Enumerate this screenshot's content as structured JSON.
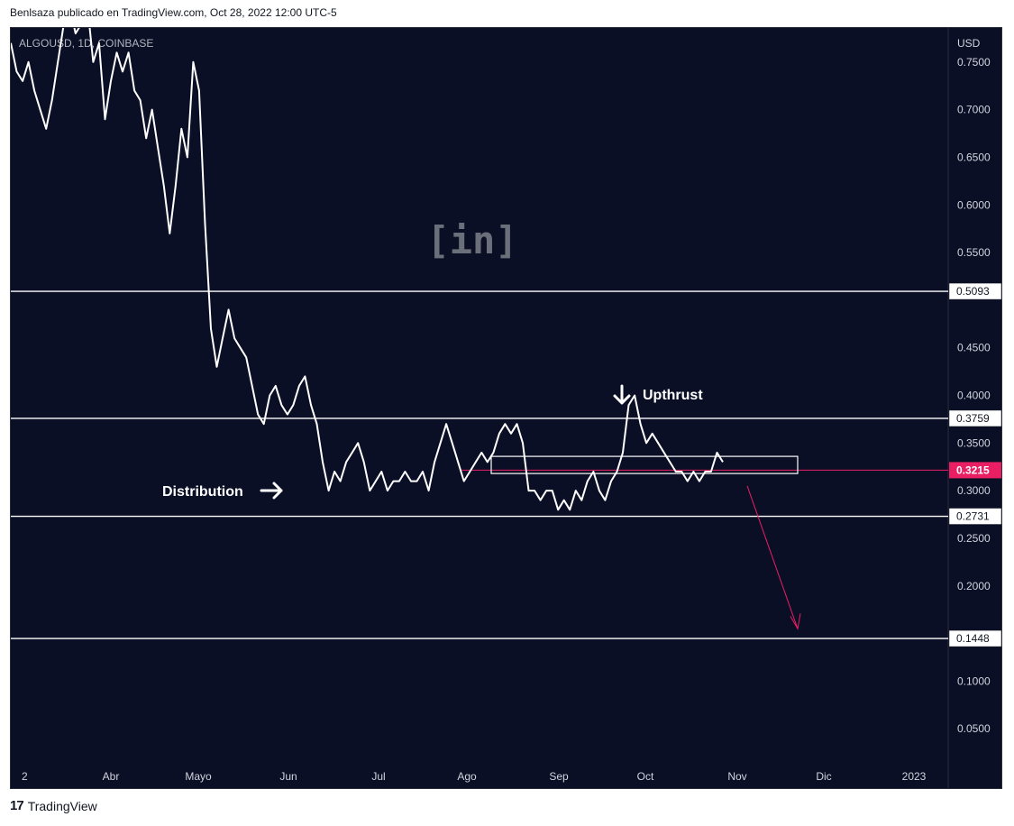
{
  "header": {
    "caption": "Benlsaza publicado en TradingView.com, Oct 28, 2022 12:00 UTC-5"
  },
  "footer": {
    "brand_logo": "17",
    "brand_text": "TradingView"
  },
  "watermark": {
    "text": "[in]"
  },
  "colors": {
    "background": "#0b0f26",
    "line": "#ffffff",
    "accent": "#e91e63",
    "axis_text": "#d1d4dc"
  },
  "chart_data": {
    "type": "line",
    "symbol": "ALGOUSD, 1D, COINBASE",
    "currency": "USD",
    "x_labels": [
      "2",
      "Abr",
      "Mayo",
      "Jun",
      "Jul",
      "Ago",
      "Sep",
      "Oct",
      "Nov",
      "Dic",
      "2023"
    ],
    "y_ticks": [
      "0.7500",
      "0.7000",
      "0.6500",
      "0.6000",
      "0.5500",
      "0.4500",
      "0.4000",
      "0.3500",
      "0.3000",
      "0.2500",
      "0.2000",
      "0.1000",
      "0.0500"
    ],
    "price_levels": [
      {
        "label": "0.5093",
        "value": 0.5093
      },
      {
        "label": "0.3759",
        "value": 0.3759
      },
      {
        "label": "0.2731",
        "value": 0.2731
      },
      {
        "label": "0.1448",
        "value": 0.1448
      }
    ],
    "current_price": {
      "label": "0.3215",
      "value": 0.3215
    },
    "annotations": {
      "distribution": "Distribution",
      "upthrust": "Upthrust"
    },
    "series": [
      {
        "values": [
          0.77,
          0.74,
          0.73,
          0.75,
          0.72,
          0.7,
          0.68,
          0.71,
          0.75,
          0.79,
          0.81,
          0.78,
          0.79,
          0.81,
          0.75,
          0.77,
          0.69,
          0.73,
          0.76,
          0.74,
          0.76,
          0.72,
          0.71,
          0.67,
          0.7,
          0.66,
          0.62,
          0.57,
          0.62,
          0.68,
          0.65,
          0.75,
          0.72,
          0.58,
          0.47,
          0.43,
          0.46,
          0.49,
          0.46,
          0.45,
          0.44,
          0.41,
          0.38,
          0.37,
          0.4,
          0.41,
          0.39,
          0.38,
          0.39,
          0.41,
          0.42,
          0.39,
          0.37,
          0.33,
          0.3,
          0.32,
          0.31,
          0.33,
          0.34,
          0.35,
          0.33,
          0.3,
          0.31,
          0.32,
          0.3,
          0.31,
          0.31,
          0.32,
          0.31,
          0.31,
          0.32,
          0.3,
          0.33,
          0.35,
          0.37,
          0.35,
          0.33,
          0.31,
          0.32,
          0.33,
          0.34,
          0.33,
          0.34,
          0.36,
          0.37,
          0.36,
          0.37,
          0.35,
          0.3,
          0.3,
          0.29,
          0.3,
          0.3,
          0.28,
          0.29,
          0.28,
          0.3,
          0.29,
          0.31,
          0.32,
          0.3,
          0.29,
          0.31,
          0.32,
          0.34,
          0.39,
          0.4,
          0.37,
          0.35,
          0.36,
          0.35,
          0.34,
          0.33,
          0.32,
          0.32,
          0.31,
          0.32,
          0.31,
          0.32,
          0.32,
          0.34,
          0.33
        ],
        "start_date": "2022-03-01",
        "end_date": "2022-10-28"
      }
    ],
    "ylim": [
      0.05,
      0.8
    ],
    "grid": false
  }
}
